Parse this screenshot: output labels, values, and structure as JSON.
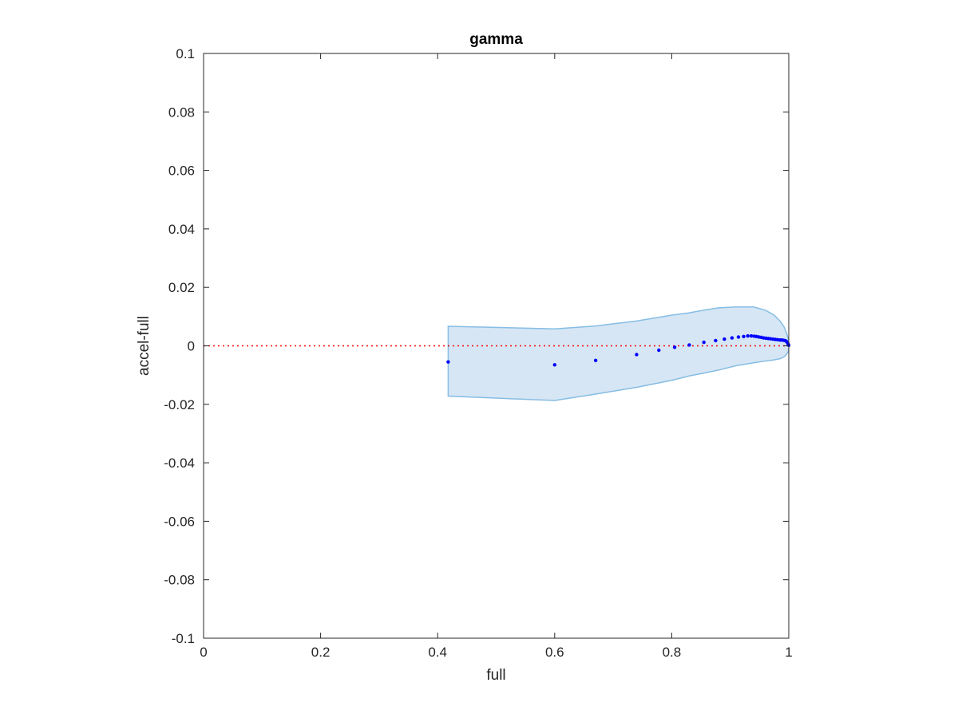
{
  "chart_data": {
    "type": "scatter",
    "title": "gamma",
    "xlabel": "full",
    "ylabel": "accel-full",
    "xlim": [
      0,
      1
    ],
    "ylim": [
      -0.1,
      0.1
    ],
    "xticks": [
      0,
      0.2,
      0.4,
      0.6,
      0.8,
      1
    ],
    "xtick_labels": [
      "0",
      "0.2",
      "0.4",
      "0.6",
      "0.8",
      "1"
    ],
    "yticks": [
      -0.1,
      -0.08,
      -0.06,
      -0.04,
      -0.02,
      0,
      0.02,
      0.04,
      0.06,
      0.08,
      0.1
    ],
    "ytick_labels": [
      "-0.1",
      "-0.08",
      "-0.06",
      "-0.04",
      "-0.02",
      "0",
      "0.02",
      "0.04",
      "0.06",
      "0.08",
      "0.1"
    ],
    "grid": false,
    "reference_line": {
      "y": 0,
      "style": "dotted",
      "color": "#ff0000"
    },
    "points": {
      "color": "#0000ff",
      "x": [
        0.418,
        0.6,
        0.67,
        0.74,
        0.778,
        0.805,
        0.83,
        0.855,
        0.875,
        0.89,
        0.903,
        0.914,
        0.923,
        0.93,
        0.936,
        0.941,
        0.945,
        0.949,
        0.953,
        0.957,
        0.961,
        0.965,
        0.969,
        0.973,
        0.977,
        0.981,
        0.985,
        0.988,
        0.991,
        0.994,
        0.996,
        0.998,
        0.999,
        1.0
      ],
      "y": [
        -0.0055,
        -0.0065,
        -0.005,
        -0.003,
        -0.0015,
        -0.0005,
        0.0003,
        0.0012,
        0.0018,
        0.0023,
        0.0027,
        0.003,
        0.0032,
        0.0034,
        0.0034,
        0.0033,
        0.0032,
        0.003,
        0.0029,
        0.0027,
        0.0026,
        0.0025,
        0.0024,
        0.0023,
        0.0022,
        0.0021,
        0.002,
        0.002,
        0.0019,
        0.0018,
        0.0015,
        0.001,
        0.0006,
        0.0002
      ]
    },
    "band": {
      "fill": "#d6e6f4",
      "stroke": "#86bde4",
      "x": [
        0.418,
        0.6,
        0.67,
        0.74,
        0.8,
        0.83,
        0.855,
        0.88,
        0.91,
        0.94,
        0.96,
        0.975,
        0.985,
        0.992,
        0.996,
        0.999,
        1.0
      ],
      "upper": [
        0.0067,
        0.0058,
        0.0068,
        0.0085,
        0.0105,
        0.0113,
        0.0122,
        0.013,
        0.0133,
        0.0133,
        0.0122,
        0.0105,
        0.0085,
        0.0065,
        0.0045,
        0.0025,
        0.001
      ],
      "lower": [
        -0.0172,
        -0.0187,
        -0.0165,
        -0.0142,
        -0.0118,
        -0.0103,
        -0.0093,
        -0.0083,
        -0.0068,
        -0.0058,
        -0.0052,
        -0.0048,
        -0.0044,
        -0.0038,
        -0.003,
        -0.002,
        -0.0008
      ]
    }
  }
}
